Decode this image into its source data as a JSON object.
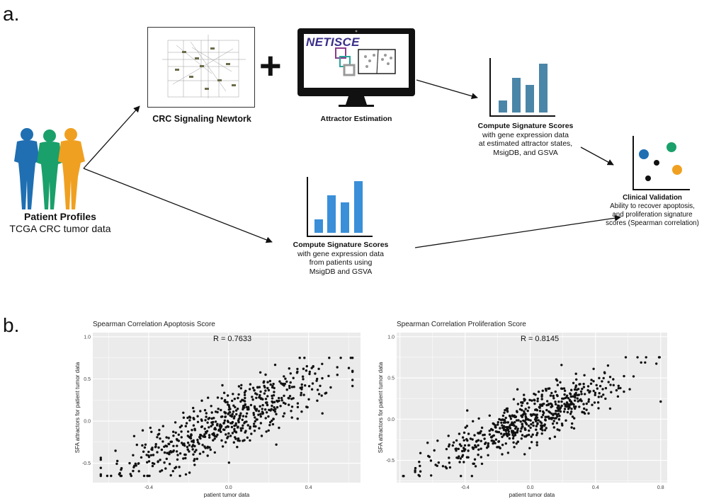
{
  "panel_a": {
    "letter": "a.",
    "network_label": "CRC Signaling Newtork",
    "netisce_logo": "NETISCE",
    "attractor_label": "Attractor Estimation",
    "plus_symbol": "+",
    "patient": {
      "title": "Patient Profiles",
      "subtitle": "TCGA CRC tumor data",
      "colors": [
        "#1f6fb2",
        "#1aa06a",
        "#f0a020"
      ]
    },
    "top_scores": {
      "title": "Compute Signature Scores",
      "lines": [
        "with gene expression data",
        "at estimated attractor states,",
        "MsigDB, and GSVA"
      ],
      "bar_color": "#4a86a8"
    },
    "bottom_scores": {
      "title": "Compute Signature Scores",
      "lines": [
        "with gene expression data",
        "from patients using",
        "MsigDB and GSVA"
      ],
      "bar_color": "#3a8fd8"
    },
    "clinical": {
      "title": "Clinical Validation",
      "lines": [
        "Ability to recover apoptosis,",
        "and proliferation signature",
        "scores (Spearman correlation)"
      ],
      "dot_colors": [
        "#1f6fb2",
        "#1aa06a",
        "#f0a020",
        "#111111"
      ]
    }
  },
  "panel_b": {
    "letter": "b.",
    "plots": [
      {
        "title": "Spearman Correlation Apoptosis Score",
        "r_label": "R =  0.7633",
        "xlabel": "patient tumor data",
        "ylabel": "SFA attractors for patient tumor data",
        "xticks": [
          "-0.4",
          "0.0",
          "0.4"
        ],
        "yticks": [
          "1.0",
          "0.5",
          "0.0",
          "-0.5"
        ]
      },
      {
        "title": "Spearman Correlation Proliferation Score",
        "r_label": "R =  0.8145",
        "xlabel": "patient tumor data",
        "ylabel": "SFA attractors for patient tumor data",
        "xticks": [
          "-0.4",
          "0.0",
          "0.4",
          "0.8"
        ],
        "yticks": [
          "1.0",
          "0.5",
          "0.0",
          "-0.5"
        ]
      }
    ]
  },
  "chart_data": [
    {
      "type": "scatter",
      "title": "Spearman Correlation Apoptosis Score",
      "annotation": "R =  0.7633",
      "xlabel": "patient tumor data",
      "ylabel": "SFA attractors for patient tumor data",
      "xlim": [
        -0.68,
        0.66
      ],
      "ylim": [
        -0.73,
        1.05
      ],
      "xticks": [
        -0.4,
        0.0,
        0.4
      ],
      "yticks": [
        -0.5,
        0.0,
        0.5,
        1.0
      ],
      "grid": true,
      "n_points": 600,
      "slope": 1.0,
      "intercept": 0.0,
      "x_mean": 0.0,
      "x_sd": 0.26,
      "noise_sd": 0.18
    },
    {
      "type": "scatter",
      "title": "Spearman Correlation Proliferation Score",
      "annotation": "R =  0.8145",
      "xlabel": "patient tumor data",
      "ylabel": "SFA attractors for patient tumor data",
      "xlim": [
        -0.82,
        0.84
      ],
      "ylim": [
        -0.77,
        1.05
      ],
      "xticks": [
        -0.4,
        0.0,
        0.4,
        0.8
      ],
      "yticks": [
        -0.5,
        0.0,
        0.5,
        1.0
      ],
      "grid": true,
      "n_points": 600,
      "slope": 0.85,
      "intercept": 0.0,
      "x_mean": 0.0,
      "x_sd": 0.3,
      "noise_sd": 0.14
    }
  ]
}
